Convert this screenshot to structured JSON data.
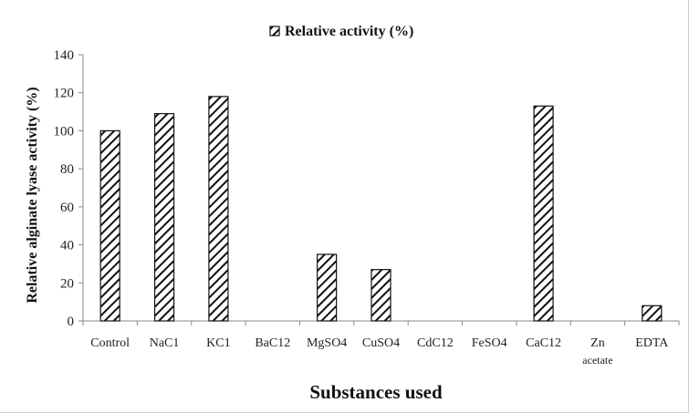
{
  "chart_data": {
    "type": "bar",
    "categories": [
      "Control",
      "NaC1",
      "KC1",
      "BaC12",
      "MgSO4",
      "CuSO4",
      "CdC12",
      "FeSO4",
      "CaC12",
      "Zn acetate",
      "EDTA"
    ],
    "series": [
      {
        "name": "Relative activity (%)",
        "values": [
          100,
          109,
          118,
          0,
          35,
          27,
          0,
          0,
          113,
          0,
          8
        ]
      }
    ],
    "xlabel": "Substances used",
    "ylabel": "Relative alginate lyase activity (%)",
    "ylim": [
      0,
      140
    ],
    "yticks": [
      0,
      20,
      40,
      60,
      80,
      100,
      120,
      140
    ],
    "grid": false,
    "legend_position": "top-center",
    "colors": {
      "bar_stroke": "#111111",
      "bar_fill_pattern": "diagonal-hatch",
      "axis": "#888888"
    }
  }
}
